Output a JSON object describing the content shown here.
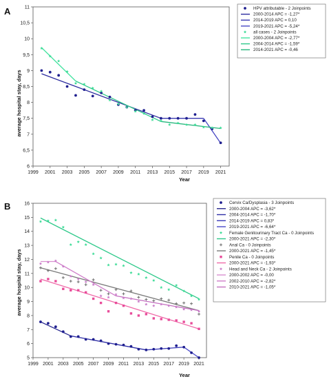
{
  "chart_data": [
    {
      "panel": "A",
      "type": "scatter",
      "xlabel": "Year",
      "ylabel": "average hospital stay, days",
      "xlim": [
        1999,
        2022
      ],
      "ylim": [
        6,
        11
      ],
      "xticks": [
        1999,
        2001,
        2003,
        2005,
        2007,
        2009,
        2011,
        2013,
        2015,
        2017,
        2019,
        2021
      ],
      "yticks": [
        6,
        6.5,
        7,
        7.5,
        8,
        8.5,
        9,
        9.5,
        10,
        10.5,
        11
      ],
      "ytick_labels": [
        "6",
        "6,5",
        "7",
        "7,5",
        "8",
        "8,5",
        "9",
        "9,5",
        "10",
        "10,5",
        "11"
      ],
      "legend_position": "top-right",
      "series": [
        {
          "name": "HPV attributable - 2 Joinpoints",
          "marker": "circle",
          "color": "#1f1f8f",
          "x": [
            2000,
            2001,
            2002,
            2003,
            2004,
            2005,
            2006,
            2007,
            2008,
            2009,
            2010,
            2011,
            2012,
            2013,
            2014,
            2015,
            2016,
            2017,
            2018,
            2019,
            2020,
            2021
          ],
          "y": [
            9.0,
            8.95,
            8.85,
            8.5,
            8.22,
            8.4,
            8.2,
            8.3,
            8.17,
            7.93,
            7.85,
            7.75,
            7.75,
            7.55,
            7.5,
            7.5,
            7.5,
            7.5,
            7.62,
            7.42,
            7.17,
            6.73
          ],
          "fits": [
            {
              "name": "2000-2014 APC = -1,27*",
              "color": "#2b2b9e",
              "x": [
                2000,
                2014
              ],
              "y": [
                8.9,
                7.5
              ]
            },
            {
              "name": "2014-2019 APC = 0,10",
              "color": "#3a3ab0",
              "x": [
                2014,
                2019
              ],
              "y": [
                7.5,
                7.5
              ]
            },
            {
              "name": "2019-2021 APC = -5,24*",
              "color": "#4848c4",
              "x": [
                2019,
                2021
              ],
              "y": [
                7.5,
                6.72
              ]
            }
          ]
        },
        {
          "name": "all cases - 2 Joinpoints",
          "marker": "star",
          "color": "#3ddc97",
          "x": [
            2000,
            2001,
            2002,
            2003,
            2004,
            2005,
            2006,
            2007,
            2008,
            2009,
            2010,
            2011,
            2012,
            2013,
            2014,
            2015,
            2016,
            2017,
            2018,
            2019,
            2020,
            2021
          ],
          "y": [
            9.7,
            9.45,
            9.3,
            8.97,
            8.6,
            8.57,
            8.45,
            8.35,
            8.07,
            7.95,
            7.85,
            7.72,
            7.65,
            7.45,
            7.42,
            7.3,
            7.35,
            7.3,
            7.3,
            7.22,
            7.2,
            7.2
          ],
          "fits": [
            {
              "name": "2000-2004 APC = -2,77*",
              "color": "#44e3a0",
              "x": [
                2000,
                2004
              ],
              "y": [
                9.72,
                8.67
              ]
            },
            {
              "name": "2004-2014 APC = -1,59*",
              "color": "#2ec98a",
              "x": [
                2004,
                2014
              ],
              "y": [
                8.67,
                7.4
              ]
            },
            {
              "name": "2014-2021 APC = -0,46",
              "color": "#25b67c",
              "x": [
                2014,
                2021
              ],
              "y": [
                7.4,
                7.18
              ]
            }
          ]
        }
      ]
    },
    {
      "panel": "B",
      "type": "scatter",
      "xlabel": "Year",
      "ylabel": "average hospital stay, days",
      "xlim": [
        1999,
        2022
      ],
      "ylim": [
        5,
        16
      ],
      "xticks": [
        1999,
        2001,
        2003,
        2005,
        2007,
        2009,
        2011,
        2013,
        2015,
        2017,
        2019,
        2021
      ],
      "yticks": [
        5,
        6,
        7,
        8,
        9,
        10,
        11,
        12,
        13,
        14,
        15,
        16
      ],
      "ytick_labels": [
        "5",
        "6",
        "7",
        "8",
        "9",
        "10",
        "11",
        "12",
        "13",
        "14",
        "15",
        "16"
      ],
      "legend_position": "right",
      "series": [
        {
          "name": "Cervix Ca/Dysplasia - 3 Joinpoints",
          "marker": "circle",
          "color": "#1f1f8f",
          "x": [
            2000,
            2001,
            2002,
            2003,
            2004,
            2005,
            2006,
            2007,
            2008,
            2009,
            2010,
            2011,
            2012,
            2013,
            2014,
            2015,
            2016,
            2017,
            2018,
            2019,
            2020,
            2021
          ],
          "y": [
            7.55,
            7.45,
            7.2,
            6.85,
            6.5,
            6.5,
            6.3,
            6.3,
            6.2,
            6.0,
            5.95,
            5.9,
            5.8,
            5.6,
            5.55,
            5.6,
            5.65,
            5.65,
            5.85,
            5.75,
            5.35,
            5.0
          ],
          "fits": [
            {
              "name": "2000-2004 APC = -3,62*",
              "color": "#26268f",
              "x": [
                2000,
                2004
              ],
              "y": [
                7.55,
                6.55
              ]
            },
            {
              "name": "2004-2014 APC = -1,70*",
              "color": "#2e2ea6",
              "x": [
                2004,
                2014
              ],
              "y": [
                6.55,
                5.55
              ]
            },
            {
              "name": "2014-2019 APC = 0,83*",
              "color": "#3a3ab8",
              "x": [
                2014,
                2019
              ],
              "y": [
                5.55,
                5.75
              ]
            },
            {
              "name": "2019-2021 APC = -6,64*",
              "color": "#4747c9",
              "x": [
                2019,
                2021
              ],
              "y": [
                5.75,
                5.0
              ]
            }
          ]
        },
        {
          "name": "Female Genitourinary Tract Ca - 0 Joinpoints",
          "marker": "star",
          "color": "#3ddc97",
          "x": [
            2000,
            2001,
            2002,
            2003,
            2004,
            2005,
            2006,
            2007,
            2008,
            2009,
            2010,
            2011,
            2012,
            2013,
            2014,
            2015,
            2016,
            2017,
            2018,
            2019,
            2020,
            2021
          ],
          "y": [
            14.7,
            14.75,
            14.8,
            14.3,
            13.05,
            13.25,
            13.05,
            12.4,
            12.1,
            11.6,
            11.65,
            11.55,
            11.05,
            10.95,
            10.7,
            10.5,
            10.0,
            9.85,
            10.15,
            9.75,
            9.4,
            9.15
          ],
          "fits": [
            {
              "name": "2000-2021 APC = -2,30*",
              "color": "#2ec98a",
              "x": [
                2000,
                2021
              ],
              "y": [
                14.95,
                9.2
              ]
            }
          ]
        },
        {
          "name": "Anal Ca - 0 Joinpoints",
          "marker": "plus",
          "color": "#6e6e6e",
          "x": [
            2000,
            2001,
            2002,
            2003,
            2004,
            2005,
            2006,
            2007,
            2008,
            2009,
            2010,
            2011,
            2012,
            2013,
            2014,
            2015,
            2016,
            2017,
            2018,
            2019,
            2020,
            2021
          ],
          "y": [
            11.4,
            11.2,
            11.35,
            10.7,
            10.45,
            10.4,
            10.2,
            10.55,
            9.8,
            9.55,
            9.85,
            9.55,
            9.75,
            9.3,
            9.15,
            9.05,
            9.2,
            9.1,
            8.85,
            8.9,
            8.85,
            8.1
          ],
          "fits": [
            {
              "name": "2000-2021 APC = -1,45*",
              "color": "#7a7a7a",
              "x": [
                2000,
                2021
              ],
              "y": [
                11.4,
                8.35
              ]
            }
          ]
        },
        {
          "name": "Penile Ca - 0 Joinpoints",
          "marker": "square",
          "color": "#e84c9a",
          "x": [
            2000,
            2001,
            2002,
            2003,
            2004,
            2005,
            2006,
            2007,
            2008,
            2009,
            2010,
            2011,
            2012,
            2013,
            2014,
            2015,
            2016,
            2017,
            2018,
            2019,
            2020,
            2021
          ],
          "y": [
            10.45,
            10.6,
            10.45,
            9.9,
            9.8,
            9.8,
            9.65,
            9.2,
            8.9,
            8.3,
            8.9,
            8.7,
            8.15,
            8.0,
            8.1,
            7.8,
            7.75,
            7.7,
            7.65,
            7.55,
            7.45,
            7.05
          ],
          "fits": [
            {
              "name": "2000-2021 APC = -1,93*",
              "color": "#f06aa9",
              "x": [
                2000,
                2021
              ],
              "y": [
                10.6,
                7.05
              ]
            }
          ]
        },
        {
          "name": "Head and Neck Ca - 2 Joinpoints",
          "marker": "star",
          "color": "#c97bc9",
          "x": [
            2000,
            2001,
            2002,
            2003,
            2004,
            2005,
            2006,
            2007,
            2008,
            2009,
            2010,
            2011,
            2012,
            2013,
            2014,
            2015,
            2016,
            2017,
            2018,
            2019,
            2020,
            2021
          ],
          "y": [
            11.7,
            11.8,
            11.9,
            11.5,
            10.8,
            10.6,
            10.4,
            10.2,
            9.4,
            9.3,
            9.5,
            9.25,
            9.2,
            9.0,
            8.8,
            8.7,
            8.8,
            8.7,
            8.6,
            8.45,
            8.4,
            8.3
          ],
          "fits": [
            {
              "name": "2000-2002 APC = -0,00",
              "color": "#d98fd0",
              "x": [
                2000,
                2002
              ],
              "y": [
                11.85,
                11.85
              ]
            },
            {
              "name": "2002-2010 APC = -2,82*",
              "color": "#cf7ec9",
              "x": [
                2002,
                2010
              ],
              "y": [
                11.85,
                9.4
              ]
            },
            {
              "name": "2010-2021 APC = -1,05*",
              "color": "#c46fc0",
              "x": [
                2010,
                2021
              ],
              "y": [
                9.4,
                8.35
              ]
            }
          ]
        }
      ]
    }
  ]
}
